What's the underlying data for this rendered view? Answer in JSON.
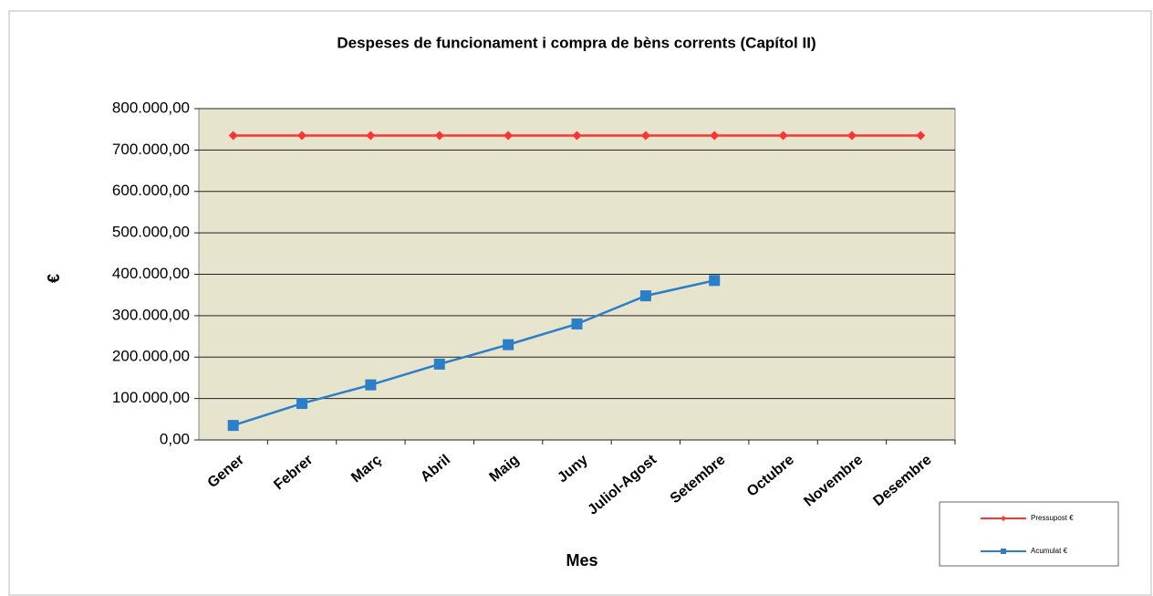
{
  "chart_data": {
    "type": "line",
    "title": "Despeses de funcionament i compra de bèns corrents (Capítol II)",
    "xlabel": "Mes",
    "ylabel": "€",
    "categories": [
      "Gener",
      "Febrer",
      "Març",
      "Abril",
      "Maig",
      "Juny",
      "Juliol-Agost",
      "Setembre",
      "Octubre",
      "Novembre",
      "Desembre"
    ],
    "series": [
      {
        "name": "Pressupost €",
        "color": "#ff3333",
        "marker": "diamond",
        "values": [
          735000,
          735000,
          735000,
          735000,
          735000,
          735000,
          735000,
          735000,
          735000,
          735000,
          735000
        ]
      },
      {
        "name": "Acumulat €",
        "color": "#2a7fc8",
        "marker": "square",
        "values": [
          35000,
          88000,
          133000,
          183000,
          230000,
          280000,
          348000,
          385000,
          null,
          null,
          null
        ]
      }
    ],
    "ylim": [
      0,
      800000
    ],
    "yticks": [
      {
        "value": 0,
        "label": "0,00"
      },
      {
        "value": 100000,
        "label": "100.000,00"
      },
      {
        "value": 200000,
        "label": "200.000,00"
      },
      {
        "value": 300000,
        "label": "300.000,00"
      },
      {
        "value": 400000,
        "label": "400.000,00"
      },
      {
        "value": 500000,
        "label": "500.000,00"
      },
      {
        "value": 600000,
        "label": "600.000,00"
      },
      {
        "value": 700000,
        "label": "700.000,00"
      },
      {
        "value": 800000,
        "label": "800.000,00"
      }
    ],
    "grid": true,
    "legend": "lower right"
  }
}
